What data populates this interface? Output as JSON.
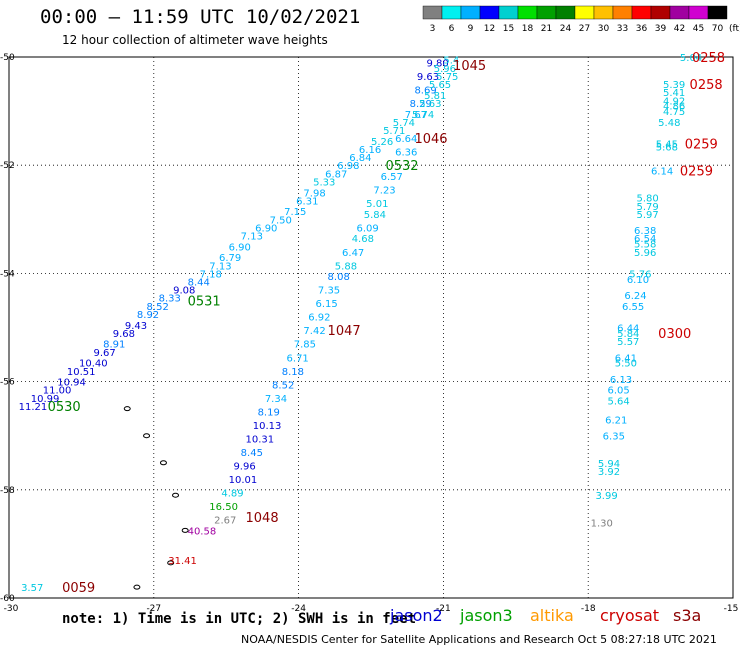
{
  "title": "00:00 – 11:59 UTC 10/02/2021",
  "subtitle": "12 hour collection of altimeter wave heights",
  "note": "note: 1) Time is in UTC; 2) SWH is in feet",
  "satellites": [
    {
      "name": "jason2",
      "color": "#0000d0"
    },
    {
      "name": "jason3",
      "color": "#00a000"
    },
    {
      "name": "altika",
      "color": "#ff9900"
    },
    {
      "name": "cryosat",
      "color": "#cc0000"
    },
    {
      "name": "s3a",
      "color": "#8b0000"
    }
  ],
  "footer": "NOAA/NESDIS Center for Satellite Applications and Research    Oct  5 08:27:18 UTC 2021",
  "legend": {
    "values": [
      "3",
      "6",
      "9",
      "12",
      "15",
      "18",
      "21",
      "24",
      "27",
      "30",
      "33",
      "36",
      "39",
      "42",
      "45",
      "70"
    ],
    "unit": "(ft)",
    "colors": [
      "#808080",
      "#00f0f0",
      "#00b0ff",
      "#0000ff",
      "#00d0d0",
      "#00e000",
      "#00a000",
      "#008000",
      "#ffff00",
      "#ffc000",
      "#ff8000",
      "#ff0000",
      "#b00000",
      "#a000a0",
      "#d000d0",
      "#000000"
    ]
  },
  "chart_data": {
    "type": "scatter",
    "x_ticks": [
      "-30",
      "-27",
      "-24",
      "-21",
      "-18",
      "-15"
    ],
    "y_ticks": [
      "-50",
      "-52",
      "-54",
      "-56",
      "-58",
      "-60"
    ],
    "xlim": [
      -30,
      -15
    ],
    "ylim": [
      -60,
      -50
    ],
    "grid": true,
    "time_labels": [
      {
        "text": "1045",
        "x": -20.8,
        "y": -50.15,
        "color": "#8b0000"
      },
      {
        "text": "1046",
        "x": -21.6,
        "y": -51.5,
        "color": "#8b0000"
      },
      {
        "text": "0532",
        "x": -22.2,
        "y": -52.0,
        "color": "#008000"
      },
      {
        "text": "1047",
        "x": -23.4,
        "y": -55.05,
        "color": "#8b0000"
      },
      {
        "text": "1048",
        "x": -25.1,
        "y": -58.5,
        "color": "#8b0000"
      },
      {
        "text": "0531",
        "x": -26.3,
        "y": -54.5,
        "color": "#008000"
      },
      {
        "text": "0530",
        "x": -29.2,
        "y": -56.45,
        "color": "#008000"
      },
      {
        "text": "0059",
        "x": -28.9,
        "y": -59.8,
        "color": "#8b0000"
      },
      {
        "text": "0258",
        "x": -15.85,
        "y": -50.0,
        "color": "#cc0000"
      },
      {
        "text": "0258",
        "x": -15.9,
        "y": -50.5,
        "color": "#cc0000"
      },
      {
        "text": "0259",
        "x": -16.0,
        "y": -51.6,
        "color": "#cc0000"
      },
      {
        "text": "0259",
        "x": -16.1,
        "y": -52.1,
        "color": "#cc0000"
      },
      {
        "text": "0300",
        "x": -16.55,
        "y": -55.1,
        "color": "#cc0000"
      }
    ],
    "track_jason2": [
      {
        "v": "9.80",
        "x": -21.35,
        "y": -50.1,
        "c": "#0000d0"
      },
      {
        "v": "9.63",
        "x": -21.55,
        "y": -50.35,
        "c": "#0000d0"
      },
      {
        "v": "8.69",
        "x": -21.6,
        "y": -50.6,
        "c": "#0080ff"
      },
      {
        "v": "8.29",
        "x": -21.7,
        "y": -50.85,
        "c": "#0080ff"
      },
      {
        "v": "7.67",
        "x": -21.8,
        "y": -51.05,
        "c": "#00b0ff"
      },
      {
        "v": "5.74",
        "x": -22.05,
        "y": -51.2,
        "c": "#00c8e0"
      },
      {
        "v": "5.71",
        "x": -22.25,
        "y": -51.35,
        "c": "#00c8e0"
      },
      {
        "v": "5.26",
        "x": -22.5,
        "y": -51.55,
        "c": "#00c8e0"
      },
      {
        "v": "6.16",
        "x": -22.75,
        "y": -51.7,
        "c": "#00b0ff"
      },
      {
        "v": "6.84",
        "x": -22.95,
        "y": -51.85,
        "c": "#00b0ff"
      },
      {
        "v": "6.98",
        "x": -23.2,
        "y": -52.0,
        "c": "#00b0ff"
      },
      {
        "v": "6.87",
        "x": -23.45,
        "y": -52.15,
        "c": "#00b0ff"
      },
      {
        "v": "5.33",
        "x": -23.7,
        "y": -52.3,
        "c": "#00c8e0"
      },
      {
        "v": "7.98",
        "x": -23.9,
        "y": -52.5,
        "c": "#00b0ff"
      },
      {
        "v": "6.31",
        "x": -24.05,
        "y": -52.65,
        "c": "#00b0ff"
      },
      {
        "v": "7.15",
        "x": -24.3,
        "y": -52.85,
        "c": "#00b0ff"
      },
      {
        "v": "7.50",
        "x": -24.6,
        "y": -53.0,
        "c": "#00b0ff"
      },
      {
        "v": "6.90",
        "x": -24.9,
        "y": -53.15,
        "c": "#00b0ff"
      },
      {
        "v": "7.13",
        "x": -25.2,
        "y": -53.3,
        "c": "#00b0ff"
      },
      {
        "v": "6.90",
        "x": -25.45,
        "y": -53.5,
        "c": "#00b0ff"
      },
      {
        "v": "6.79",
        "x": -25.65,
        "y": -53.7,
        "c": "#00b0ff"
      },
      {
        "v": "7.13",
        "x": -25.85,
        "y": -53.85,
        "c": "#00b0ff"
      },
      {
        "v": "7.18",
        "x": -26.05,
        "y": -54.0,
        "c": "#00b0ff"
      },
      {
        "v": "8.44",
        "x": -26.3,
        "y": -54.15,
        "c": "#0080ff"
      },
      {
        "v": "9.08",
        "x": -26.6,
        "y": -54.3,
        "c": "#0000d0"
      },
      {
        "v": "8.33",
        "x": -26.9,
        "y": -54.45,
        "c": "#0080ff"
      },
      {
        "v": "8.52",
        "x": -27.15,
        "y": -54.6,
        "c": "#0080ff"
      },
      {
        "v": "8.92",
        "x": -27.35,
        "y": -54.75,
        "c": "#0080ff"
      },
      {
        "v": "9.43",
        "x": -27.6,
        "y": -54.95,
        "c": "#0000d0"
      },
      {
        "v": "9.68",
        "x": -27.85,
        "y": -55.1,
        "c": "#0000d0"
      },
      {
        "v": "8.91",
        "x": -28.05,
        "y": -55.3,
        "c": "#0080ff"
      },
      {
        "v": "9.67",
        "x": -28.25,
        "y": -55.45,
        "c": "#0000d0"
      },
      {
        "v": "10.40",
        "x": -28.55,
        "y": -55.65,
        "c": "#0000d0"
      },
      {
        "v": "10.51",
        "x": -28.8,
        "y": -55.8,
        "c": "#0000d0"
      },
      {
        "v": "10.94",
        "x": -29.0,
        "y": -56.0,
        "c": "#0000d0"
      },
      {
        "v": "11.00",
        "x": -29.3,
        "y": -56.15,
        "c": "#0000d0"
      },
      {
        "v": "10.99",
        "x": -29.55,
        "y": -56.3,
        "c": "#0000d0"
      },
      {
        "v": "11.21",
        "x": -29.8,
        "y": -56.45,
        "c": "#0000d0"
      }
    ],
    "track_s3a_top": [
      {
        "v": "5.4",
        "x": -21.0,
        "y": -50.05,
        "c": "#00c8e0"
      },
      {
        "v": "5.96",
        "x": -21.2,
        "y": -50.2,
        "c": "#00c8e0"
      },
      {
        "v": "5.75",
        "x": -21.15,
        "y": -50.35,
        "c": "#00c8e0"
      },
      {
        "v": "5.65",
        "x": -21.3,
        "y": -50.5,
        "c": "#00c8e0"
      },
      {
        "v": "5.81",
        "x": -21.4,
        "y": -50.7,
        "c": "#00c8e0"
      },
      {
        "v": "5.63",
        "x": -21.5,
        "y": -50.85,
        "c": "#00c8e0"
      },
      {
        "v": "5.74",
        "x": -21.65,
        "y": -51.05,
        "c": "#00c8e0"
      },
      {
        "v": "6.64",
        "x": -22.0,
        "y": -51.5,
        "c": "#00b0ff"
      },
      {
        "v": "6.36",
        "x": -22.0,
        "y": -51.75,
        "c": "#00b0ff"
      },
      {
        "v": "6.57",
        "x": -22.3,
        "y": -52.2,
        "c": "#00b0ff"
      },
      {
        "v": "7.23",
        "x": -22.45,
        "y": -52.45,
        "c": "#00b0ff"
      },
      {
        "v": "5.01",
        "x": -22.6,
        "y": -52.7,
        "c": "#00c8e0"
      },
      {
        "v": "5.84",
        "x": -22.65,
        "y": -52.9,
        "c": "#00c8e0"
      },
      {
        "v": "6.09",
        "x": -22.8,
        "y": -53.15,
        "c": "#00b0ff"
      },
      {
        "v": "4.68",
        "x": -22.9,
        "y": -53.35,
        "c": "#00c8e0"
      },
      {
        "v": "6.47",
        "x": -23.1,
        "y": -53.6,
        "c": "#00b0ff"
      },
      {
        "v": "5.88",
        "x": -23.25,
        "y": -53.85,
        "c": "#00c8e0"
      },
      {
        "v": "8.08",
        "x": -23.4,
        "y": -54.05,
        "c": "#0080ff"
      },
      {
        "v": "7.35",
        "x": -23.6,
        "y": -54.3,
        "c": "#00b0ff"
      },
      {
        "v": "6.15",
        "x": -23.65,
        "y": -54.55,
        "c": "#00b0ff"
      },
      {
        "v": "6.92",
        "x": -23.8,
        "y": -54.8,
        "c": "#00b0ff"
      },
      {
        "v": "7.42",
        "x": -23.9,
        "y": -55.05,
        "c": "#00b0ff"
      },
      {
        "v": "7.85",
        "x": -24.1,
        "y": -55.3,
        "c": "#00b0ff"
      },
      {
        "v": "6.71",
        "x": -24.25,
        "y": -55.55,
        "c": "#00b0ff"
      },
      {
        "v": "8.18",
        "x": -24.35,
        "y": -55.8,
        "c": "#0080ff"
      },
      {
        "v": "8.52",
        "x": -24.55,
        "y": -56.05,
        "c": "#0080ff"
      },
      {
        "v": "7.34",
        "x": -24.7,
        "y": -56.3,
        "c": "#00b0ff"
      },
      {
        "v": "8.19",
        "x": -24.85,
        "y": -56.55,
        "c": "#0080ff"
      },
      {
        "v": "10.13",
        "x": -24.95,
        "y": -56.8,
        "c": "#0000d0"
      },
      {
        "v": "10.31",
        "x": -25.1,
        "y": -57.05,
        "c": "#0000d0"
      },
      {
        "v": "8.45",
        "x": -25.2,
        "y": -57.3,
        "c": "#0080ff"
      },
      {
        "v": "9.96",
        "x": -25.35,
        "y": -57.55,
        "c": "#0000d0"
      },
      {
        "v": "10.01",
        "x": -25.45,
        "y": -57.8,
        "c": "#0000d0"
      },
      {
        "v": "4.89",
        "x": -25.6,
        "y": -58.05,
        "c": "#00c8e0"
      },
      {
        "v": "16.50",
        "x": -25.85,
        "y": -58.3,
        "c": "#00a000"
      },
      {
        "v": "2.67",
        "x": -25.75,
        "y": -58.55,
        "c": "#808080"
      },
      {
        "v": "40.58",
        "x": -26.3,
        "y": -58.75,
        "c": "#a000a0"
      },
      {
        "v": "31.41",
        "x": -26.7,
        "y": -59.3,
        "c": "#cc0000"
      },
      {
        "v": "3.57",
        "x": -29.75,
        "y": -59.8,
        "c": "#00c8e0"
      }
    ],
    "track_right": [
      {
        "v": "5.04",
        "x": -16.1,
        "y": -50.0,
        "c": "#00c8e0"
      },
      {
        "v": "5.39",
        "x": -16.45,
        "y": -50.5,
        "c": "#00c8e0"
      },
      {
        "v": "5.41",
        "x": -16.45,
        "y": -50.65,
        "c": "#00c8e0"
      },
      {
        "v": "4.92",
        "x": -16.45,
        "y": -50.8,
        "c": "#00c8e0"
      },
      {
        "v": "4.86",
        "x": -16.45,
        "y": -50.9,
        "c": "#00c8e0"
      },
      {
        "v": "4.75",
        "x": -16.45,
        "y": -51.0,
        "c": "#00c8e0"
      },
      {
        "v": "5.48",
        "x": -16.55,
        "y": -51.2,
        "c": "#00c8e0"
      },
      {
        "v": "5.45",
        "x": -16.6,
        "y": -51.6,
        "c": "#00c8e0"
      },
      {
        "v": "5.68",
        "x": -16.6,
        "y": -51.65,
        "c": "#00c8e0"
      },
      {
        "v": "6.14",
        "x": -16.7,
        "y": -52.1,
        "c": "#00b0ff"
      },
      {
        "v": "5.80",
        "x": -17.0,
        "y": -52.6,
        "c": "#00c8e0"
      },
      {
        "v": "5.79",
        "x": -17.0,
        "y": -52.75,
        "c": "#00c8e0"
      },
      {
        "v": "5.97",
        "x": -17.0,
        "y": -52.9,
        "c": "#00c8e0"
      },
      {
        "v": "6.38",
        "x": -17.05,
        "y": -53.2,
        "c": "#00b0ff"
      },
      {
        "v": "6.54",
        "x": -17.05,
        "y": -53.35,
        "c": "#00b0ff"
      },
      {
        "v": "5.58",
        "x": -17.05,
        "y": -53.45,
        "c": "#00c8e0"
      },
      {
        "v": "5.96",
        "x": -17.05,
        "y": -53.6,
        "c": "#00c8e0"
      },
      {
        "v": "5.76",
        "x": -17.15,
        "y": -54.0,
        "c": "#00c8e0"
      },
      {
        "v": "6.10",
        "x": -17.2,
        "y": -54.1,
        "c": "#00b0ff"
      },
      {
        "v": "6.24",
        "x": -17.25,
        "y": -54.4,
        "c": "#00b0ff"
      },
      {
        "v": "6.55",
        "x": -17.3,
        "y": -54.6,
        "c": "#00b0ff"
      },
      {
        "v": "6.44",
        "x": -17.4,
        "y": -55.0,
        "c": "#00b0ff"
      },
      {
        "v": "5.84",
        "x": -17.4,
        "y": -55.1,
        "c": "#00c8e0"
      },
      {
        "v": "5.57",
        "x": -17.4,
        "y": -55.25,
        "c": "#00c8e0"
      },
      {
        "v": "6.41",
        "x": -17.45,
        "y": -55.55,
        "c": "#00b0ff"
      },
      {
        "v": "5.50",
        "x": -17.45,
        "y": -55.65,
        "c": "#00c8e0"
      },
      {
        "v": "6.13",
        "x": -17.55,
        "y": -55.95,
        "c": "#00b0ff"
      },
      {
        "v": "6.05",
        "x": -17.6,
        "y": -56.15,
        "c": "#00b0ff"
      },
      {
        "v": "5.64",
        "x": -17.6,
        "y": -56.35,
        "c": "#00c8e0"
      },
      {
        "v": "6.21",
        "x": -17.65,
        "y": -56.7,
        "c": "#00b0ff"
      },
      {
        "v": "6.35",
        "x": -17.7,
        "y": -57.0,
        "c": "#00b0ff"
      },
      {
        "v": "5.94",
        "x": -17.8,
        "y": -57.5,
        "c": "#00c8e0"
      },
      {
        "v": "3.92",
        "x": -17.8,
        "y": -57.65,
        "c": "#00c8e0"
      },
      {
        "v": "3.99",
        "x": -17.85,
        "y": -58.1,
        "c": "#00c8e0"
      },
      {
        "v": "1.30",
        "x": -17.95,
        "y": -58.6,
        "c": "#808080"
      }
    ],
    "islands": [
      {
        "x": -27.55,
        "y": -56.5
      },
      {
        "x": -27.15,
        "y": -57.0
      },
      {
        "x": -26.8,
        "y": -57.5
      },
      {
        "x": -26.55,
        "y": -58.1
      },
      {
        "x": -26.35,
        "y": -58.75
      },
      {
        "x": -26.65,
        "y": -59.35
      },
      {
        "x": -27.35,
        "y": -59.8
      }
    ]
  }
}
